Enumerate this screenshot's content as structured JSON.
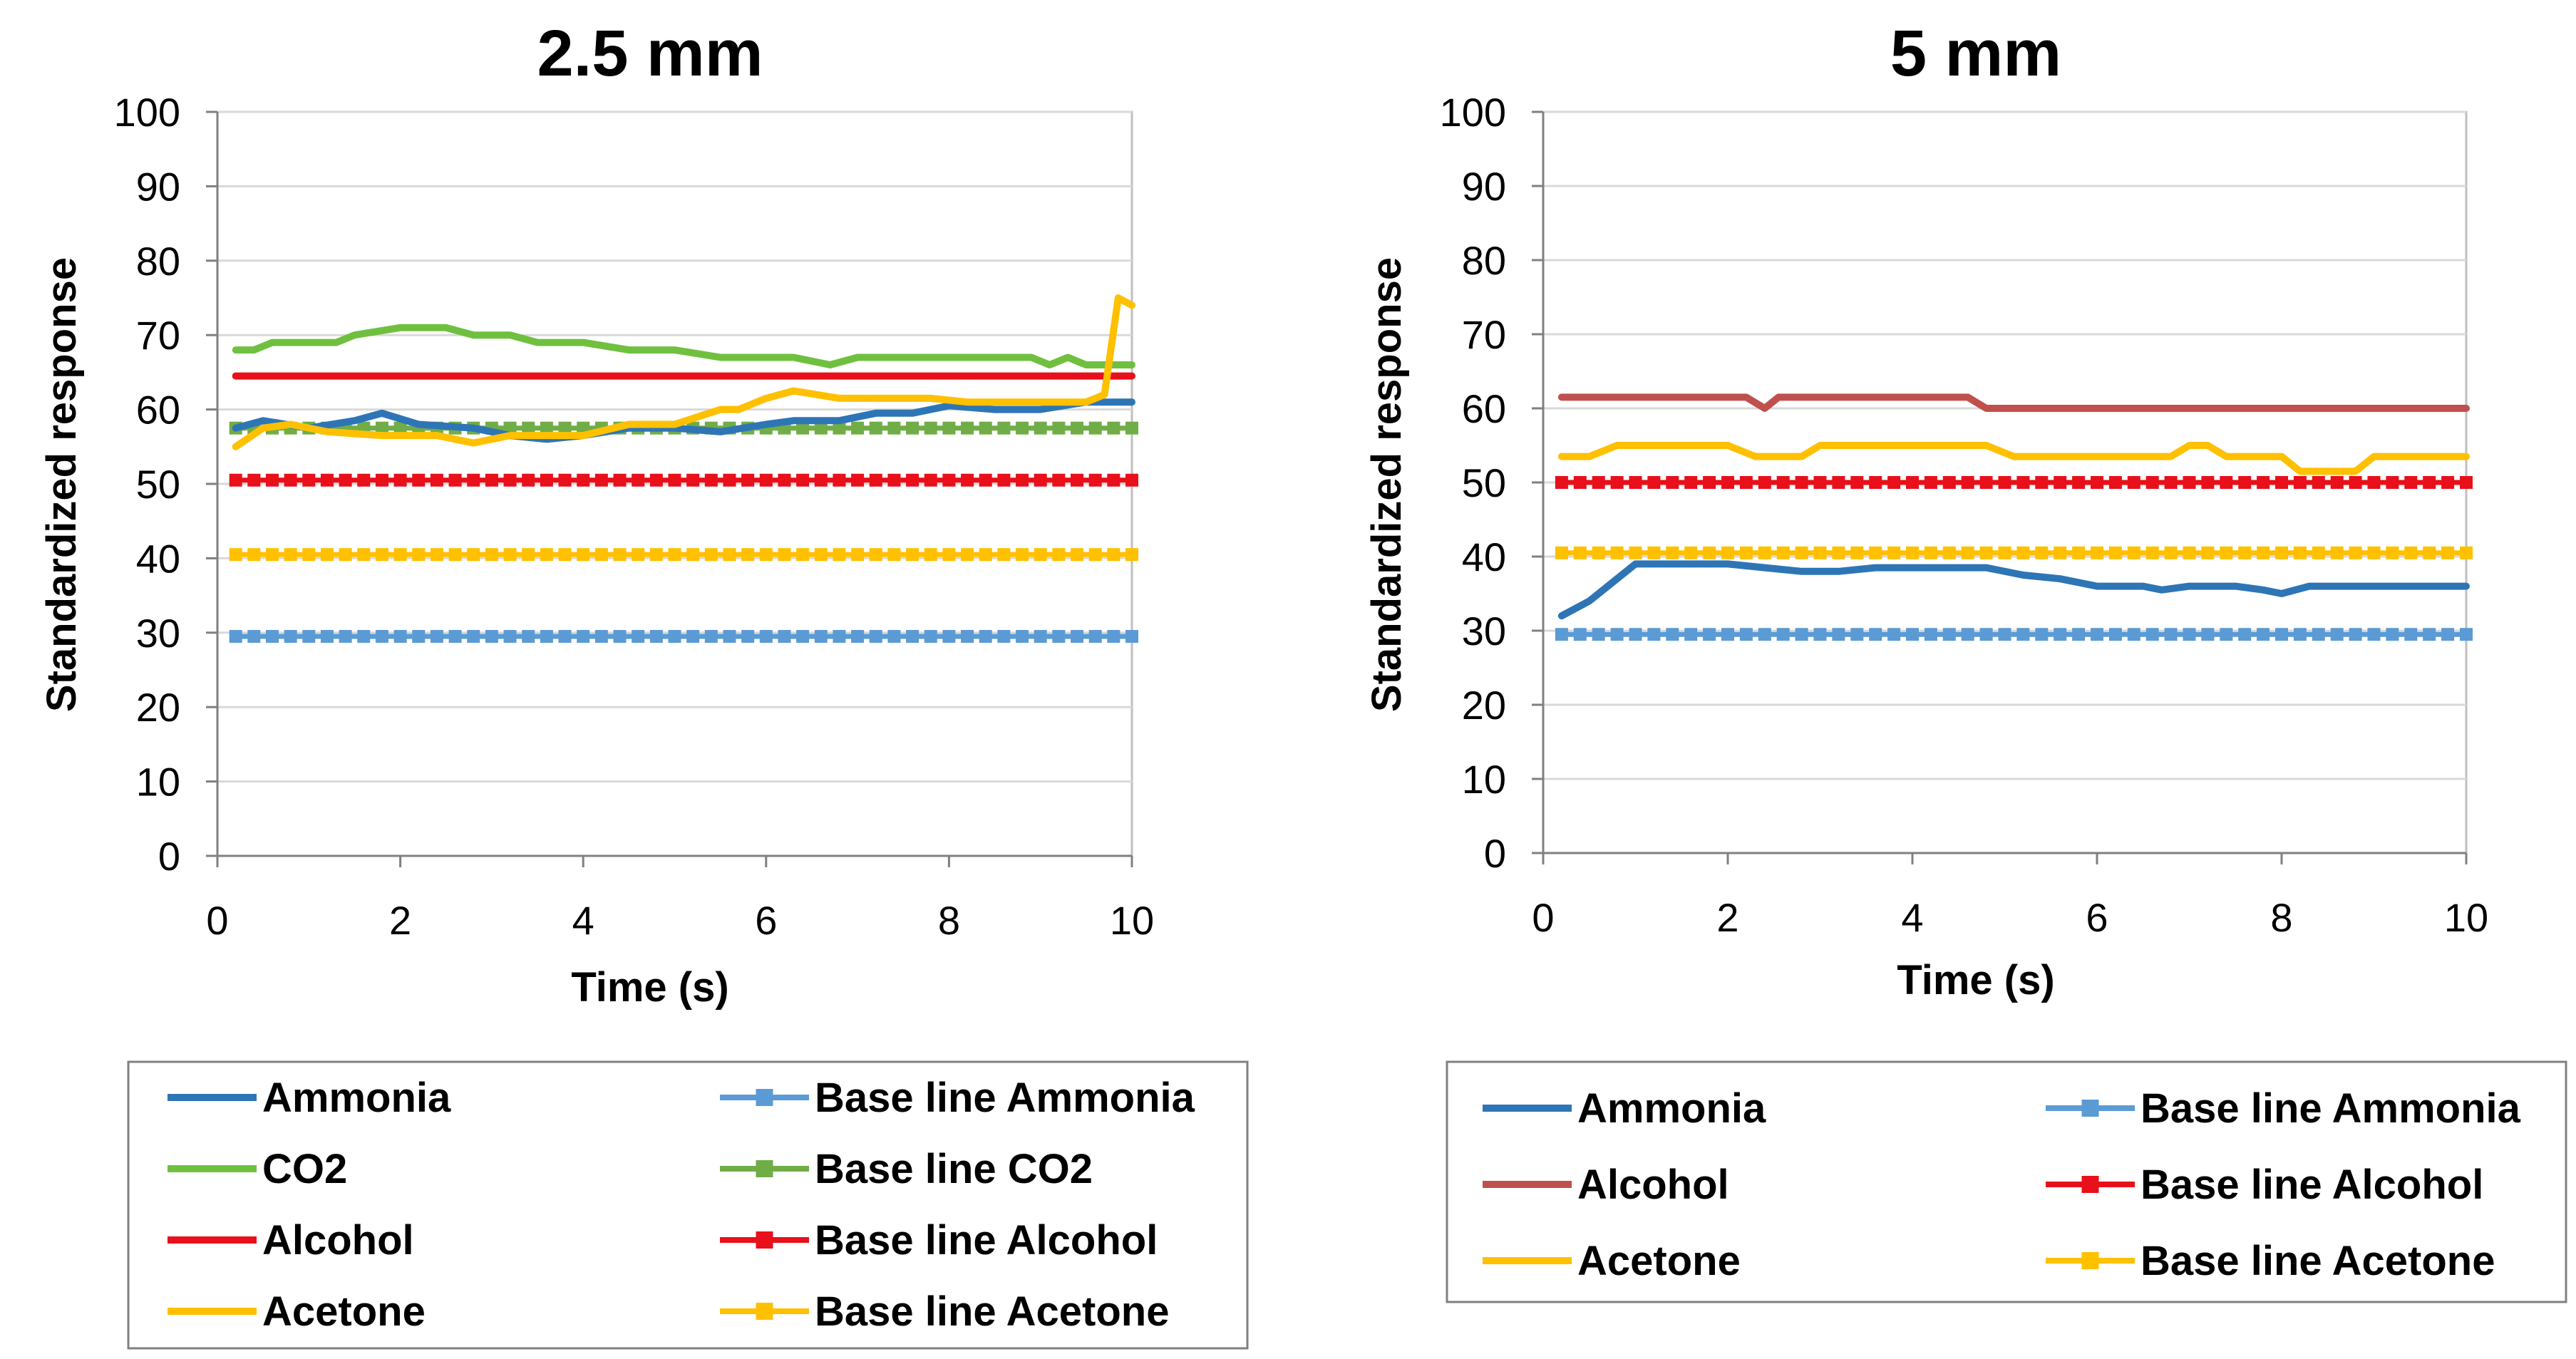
{
  "chart_data": [
    {
      "type": "line",
      "title": "2.5 mm",
      "xlabel": "Time (s)",
      "ylabel": "Standardized response",
      "xlim": [
        0,
        10
      ],
      "ylim": [
        0,
        100
      ],
      "xticks": [
        "0",
        "2",
        "4",
        "6",
        "8",
        "10"
      ],
      "yticks": [
        "0",
        "10",
        "20",
        "30",
        "40",
        "50",
        "60",
        "70",
        "80",
        "90",
        "100"
      ],
      "series": [
        {
          "name": "Ammonia",
          "color": "#2e75b6",
          "style": "solid",
          "x": [
            0.2,
            0.5,
            1,
            1.5,
            1.8,
            2.2,
            2.8,
            3.2,
            3.6,
            4,
            4.5,
            5,
            5.5,
            6,
            6.3,
            6.8,
            7.2,
            7.6,
            8,
            8.5,
            9,
            9.5,
            10
          ],
          "y": [
            57.5,
            58.5,
            57.5,
            58.5,
            59.5,
            58,
            57.5,
            56.5,
            56,
            56.5,
            57.5,
            57.5,
            57,
            58,
            58.5,
            58.5,
            59.5,
            59.5,
            60.5,
            60,
            60,
            61,
            61
          ]
        },
        {
          "name": "Base line Ammonia",
          "color": "#5b9bd5",
          "style": "marker",
          "value": 29.5
        },
        {
          "name": "CO2",
          "color": "#70c040",
          "style": "solid",
          "x": [
            0.2,
            0.4,
            0.6,
            1,
            1.3,
            1.5,
            2,
            2.5,
            2.8,
            3.2,
            3.5,
            4,
            4.5,
            5,
            5.5,
            6,
            6.3,
            6.7,
            7,
            7.5,
            8,
            8.5,
            8.9,
            9.1,
            9.3,
            9.5,
            10
          ],
          "y": [
            68,
            68,
            69,
            69,
            69,
            70,
            71,
            71,
            70,
            70,
            69,
            69,
            68,
            68,
            67,
            67,
            67,
            66,
            67,
            67,
            67,
            67,
            67,
            66,
            67,
            66,
            66
          ]
        },
        {
          "name": "Base line CO2",
          "color": "#70ad47",
          "style": "marker",
          "value": 57.5
        },
        {
          "name": "Alcohol",
          "color": "#e8101a",
          "style": "solid",
          "value": 64.5
        },
        {
          "name": "Base line Alcohol",
          "color": "#e8101a",
          "style": "marker",
          "value": 50.5
        },
        {
          "name": "Acetone",
          "color": "#ffc000",
          "style": "solid",
          "x": [
            0.2,
            0.5,
            0.8,
            1.2,
            1.8,
            2.4,
            2.8,
            3.2,
            3.6,
            4,
            4.5,
            5,
            5.5,
            5.7,
            6,
            6.3,
            6.8,
            7.2,
            7.8,
            8.2,
            8.8,
            9.2,
            9.5,
            9.7,
            9.85,
            10
          ],
          "y": [
            55,
            57.5,
            58,
            57,
            56.5,
            56.5,
            55.5,
            56.5,
            56.5,
            56.5,
            58,
            58,
            60,
            60,
            61.5,
            62.5,
            61.5,
            61.5,
            61.5,
            61,
            61,
            61,
            61,
            62,
            75,
            74
          ]
        },
        {
          "name": "Base line Acetone",
          "color": "#ffc000",
          "style": "marker",
          "value": 40.5
        }
      ],
      "legend": {
        "placement": "below",
        "entries": [
          "Ammonia",
          "Base line Ammonia",
          "CO2",
          "Base line CO2",
          "Alcohol",
          "Base line Alcohol",
          "Acetone",
          "Base line Acetone"
        ]
      }
    },
    {
      "type": "line",
      "title": "5 mm",
      "xlabel": "Time (s)",
      "ylabel": "Standardized response",
      "xlim": [
        0,
        10
      ],
      "ylim": [
        0,
        100
      ],
      "xticks": [
        "0",
        "2",
        "4",
        "6",
        "8",
        "10"
      ],
      "yticks": [
        "0",
        "10",
        "20",
        "30",
        "40",
        "50",
        "60",
        "70",
        "80",
        "90",
        "100"
      ],
      "series": [
        {
          "name": "Ammonia",
          "color": "#2e75b6",
          "style": "solid",
          "x": [
            0.2,
            0.5,
            0.8,
            1,
            1.5,
            2,
            2.4,
            2.8,
            3.2,
            3.6,
            4,
            4.5,
            4.8,
            5.2,
            5.6,
            6,
            6.5,
            6.7,
            7,
            7.5,
            7.8,
            8,
            8.3,
            8.8,
            9.2,
            10
          ],
          "y": [
            32,
            34,
            37,
            39,
            39,
            39,
            38.5,
            38,
            38,
            38.5,
            38.5,
            38.5,
            38.5,
            37.5,
            37,
            36,
            36,
            35.5,
            36,
            36,
            35.5,
            35,
            36,
            36,
            36,
            36
          ]
        },
        {
          "name": "Base line Ammonia",
          "color": "#5b9bd5",
          "style": "marker",
          "value": 29.5
        },
        {
          "name": "Alcohol",
          "color": "#c0504d",
          "style": "solid",
          "x": [
            0.2,
            1,
            2.2,
            2.4,
            2.55,
            2.75,
            3,
            4.4,
            4.6,
            4.8,
            5.5,
            10
          ],
          "y": [
            61.5,
            61.5,
            61.5,
            60,
            61.5,
            61.5,
            61.5,
            61.5,
            61.5,
            60,
            60,
            60
          ]
        },
        {
          "name": "Base line Alcohol",
          "color": "#e8101a",
          "style": "marker",
          "value": 50
        },
        {
          "name": "Acetone",
          "color": "#ffc000",
          "style": "solid",
          "x": [
            0.2,
            0.5,
            0.8,
            1,
            2,
            2.3,
            2.5,
            2.8,
            3,
            4,
            4.8,
            5.1,
            5.5,
            6,
            6.8,
            7,
            7.2,
            7.4,
            8,
            8.2,
            8.5,
            8.8,
            9,
            10
          ],
          "y": [
            53.5,
            53.5,
            55,
            55,
            55,
            53.5,
            53.5,
            53.5,
            55,
            55,
            55,
            53.5,
            53.5,
            53.5,
            53.5,
            55,
            55,
            53.5,
            53.5,
            51.5,
            51.5,
            51.5,
            53.5,
            53.5
          ]
        },
        {
          "name": "Base line Acetone",
          "color": "#ffc000",
          "style": "marker",
          "value": 40.5
        }
      ],
      "legend": {
        "placement": "below",
        "entries": [
          "Ammonia",
          "Base line Ammonia",
          "Alcohol",
          "Base line Alcohol",
          "Acetone",
          "Base line Acetone"
        ]
      }
    }
  ]
}
